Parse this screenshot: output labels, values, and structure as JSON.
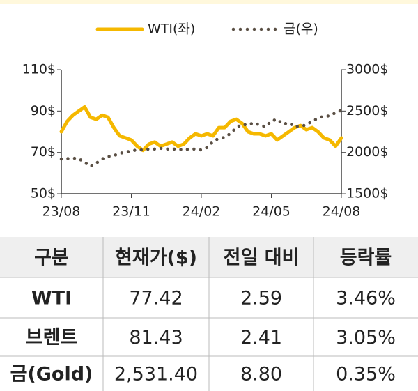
{
  "chart_data": {
    "type": "line",
    "categories": [
      "23/08",
      null,
      null,
      null,
      null,
      null,
      null,
      null,
      null,
      null,
      null,
      null,
      "23/11",
      null,
      null,
      null,
      null,
      null,
      null,
      null,
      null,
      null,
      null,
      null,
      "24/02",
      null,
      null,
      null,
      null,
      null,
      null,
      null,
      null,
      null,
      null,
      null,
      "24/05",
      null,
      null,
      null,
      null,
      null,
      null,
      null,
      null,
      null,
      null,
      null,
      "24/08"
    ],
    "series": [
      {
        "name": "WTI(좌)",
        "color": "#f5b800",
        "values": [
          80,
          85,
          88,
          90,
          92,
          87,
          86,
          88,
          87,
          82,
          78,
          77,
          76,
          73,
          71,
          74,
          75,
          73,
          74,
          75,
          73,
          74,
          77,
          79,
          78,
          79,
          78,
          82,
          82,
          85,
          86,
          84,
          80,
          79,
          79,
          78,
          79,
          76,
          78,
          80,
          82,
          83,
          81,
          82,
          80,
          77,
          76,
          73,
          77
        ]
      },
      {
        "name": "금(우)",
        "color": "#5a4f44",
        "axis": "y2",
        "dotted": true,
        "values": [
          1920,
          1925,
          1930,
          1925,
          1880,
          1830,
          1870,
          1920,
          1950,
          1960,
          1990,
          2000,
          2020,
          2030,
          2030,
          2040,
          2040,
          2050,
          2040,
          2040,
          2040,
          2030,
          2040,
          2040,
          2030,
          2060,
          2130,
          2170,
          2180,
          2230,
          2300,
          2340,
          2330,
          2360,
          2330,
          2310,
          2380,
          2400,
          2340,
          2360,
          2310,
          2320,
          2330,
          2380,
          2410,
          2440,
          2440,
          2480,
          2510
        ]
      }
    ],
    "ylim": [
      50,
      110
    ],
    "yticks": [
      {
        "value": 50,
        "label": "50$"
      },
      {
        "value": 70,
        "label": "70$"
      },
      {
        "value": 90,
        "label": "90$"
      },
      {
        "value": 110,
        "label": "110$"
      }
    ],
    "y2lim": [
      1500,
      3000
    ],
    "y2ticks": [
      {
        "value": 1500,
        "label": "1500$"
      },
      {
        "value": 2000,
        "label": "2000$"
      },
      {
        "value": 2500,
        "label": "2500$"
      },
      {
        "value": 3000,
        "label": "3000$"
      }
    ],
    "legend": "top"
  },
  "table": {
    "header": [
      "구분",
      "현재가($)",
      "전일 대비",
      "등락률"
    ],
    "rows": [
      [
        "WTI",
        "77.42",
        "2.59",
        "3.46%"
      ],
      [
        "브렌트",
        "81.43",
        "2.41",
        "3.05%"
      ],
      [
        "금(Gold)",
        "2,531.40",
        "8.80",
        "0.35%"
      ]
    ]
  }
}
